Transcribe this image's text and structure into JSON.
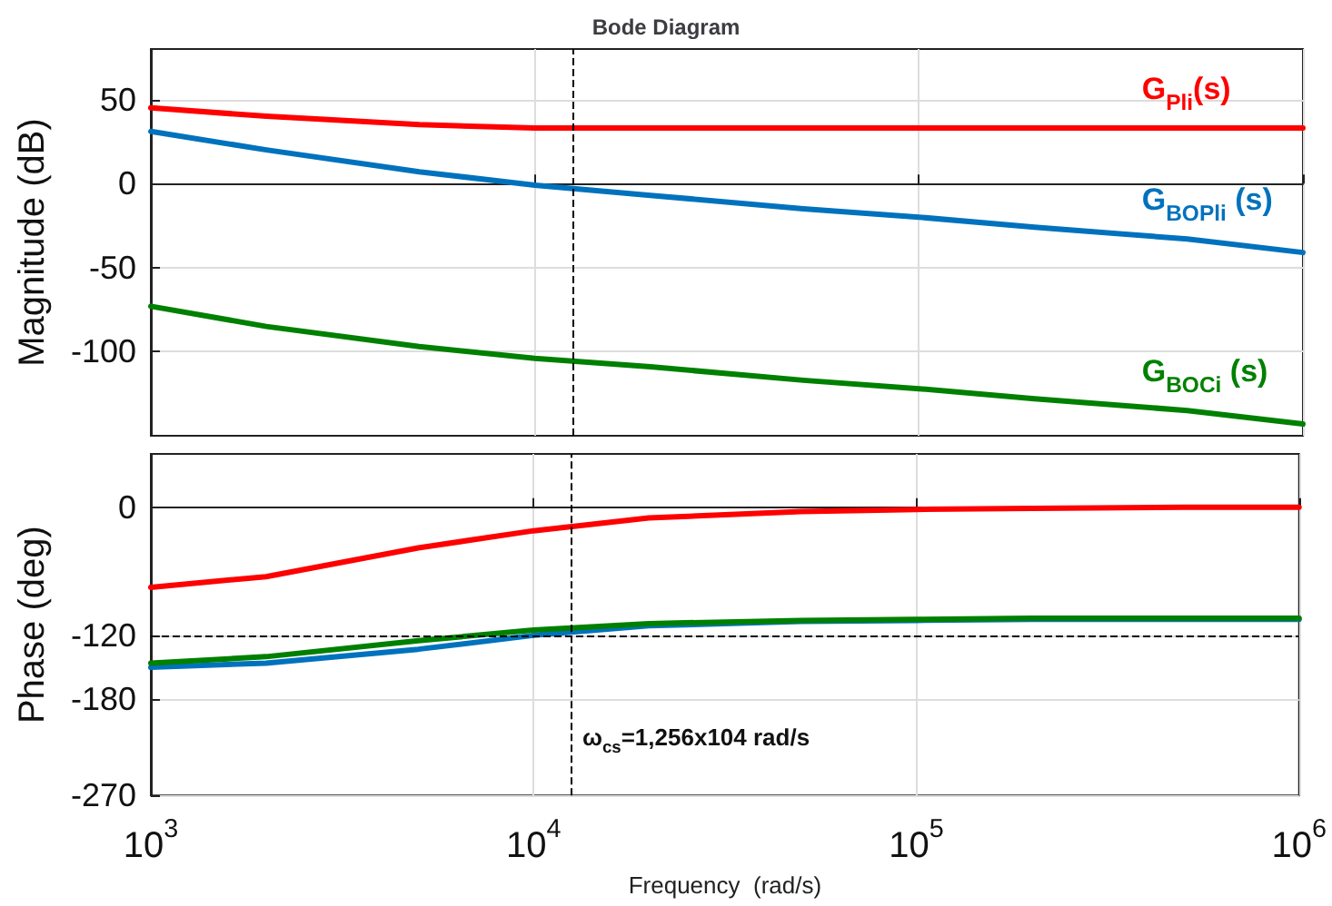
{
  "chart_data": [
    {
      "type": "line",
      "title": "Bode Diagram",
      "ylabel": "Magnitude (dB)",
      "x": [
        1000,
        2000,
        5000,
        10000,
        20000,
        50000,
        100000,
        200000,
        500000,
        1000000
      ],
      "series": [
        {
          "name": "G$_{Pli}$(s)",
          "color": "#ff0000",
          "values": [
            45,
            40,
            35,
            33,
            33,
            33,
            33,
            33,
            33,
            33
          ]
        },
        {
          "name": "G$_{BOPli}$ (s)",
          "color": "#0072bd",
          "values": [
            31,
            20,
            7,
            -1,
            -7,
            -15,
            -20,
            -26,
            -33,
            -41
          ]
        },
        {
          "name": "G$_{BOCi}$ (s)",
          "color": "#008000",
          "values": [
            -73,
            -85,
            -97,
            -104,
            -109,
            -117,
            -122,
            -128,
            -135,
            -143
          ]
        }
      ],
      "log": "x",
      "xlim": [
        1000,
        1000000
      ],
      "xticks": [
        1000,
        10000,
        100000,
        1000000
      ],
      "ylim": [
        -150,
        80
      ],
      "yticks": [
        -100,
        -50,
        0,
        50
      ],
      "tick_labels": "y",
      "grid": true,
      "legend": false,
      "ref_lines": [
        {
          "axis": "x",
          "value": 12560,
          "line_style": "dashed",
          "color": "#000000"
        }
      ]
    },
    {
      "type": "line",
      "ylabel": "Phase (deg)",
      "xlabel": "Frequency  (rad/s)",
      "x": [
        1000,
        2000,
        5000,
        10000,
        20000,
        50000,
        100000,
        200000,
        500000,
        1000000
      ],
      "series": [
        {
          "color": "#ff0000",
          "values": [
            -75,
            -65,
            -38,
            -22,
            -10,
            -4,
            -2,
            -1,
            0,
            0
          ]
        },
        {
          "color": "#0072bd",
          "values": [
            -150,
            -146,
            -133,
            -120,
            -111,
            -107,
            -106,
            -105,
            -105,
            -105
          ]
        },
        {
          "color": "#008000",
          "values": [
            -146,
            -140,
            -125,
            -115,
            -109,
            -106,
            -105,
            -104,
            -104,
            -104
          ]
        }
      ],
      "log": "x",
      "xlim": [
        1000,
        1000000
      ],
      "xticks": [
        {
          "value": 1000,
          "label": "10$^{3}$"
        },
        {
          "value": 10000,
          "label": "10$^{4}$"
        },
        {
          "value": 100000,
          "label": "10$^{5}$"
        },
        {
          "value": 1000000,
          "label": "10$^{6}$"
        }
      ],
      "ylim": [
        -270,
        50
      ],
      "yticks": [
        -270,
        -180,
        -120,
        0
      ],
      "grid": true,
      "legend": false,
      "ref_lines": [
        {
          "axis": "x",
          "value": 12560,
          "line_style": "dashed",
          "color": "#000000"
        },
        {
          "axis": "y",
          "value": -120,
          "line_style": "dashed",
          "color": "#000000"
        }
      ],
      "annotations": [
        {
          "text": "ω$_{cs}$=1,256x104 rad/s",
          "x": 12560,
          "y": -215
        }
      ]
    }
  ]
}
